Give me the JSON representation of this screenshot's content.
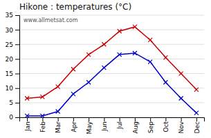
{
  "chart_data": {
    "type": "line",
    "title": "Hikone : temperatures (°C)",
    "categories": [
      "Jan",
      "Feb",
      "Mar",
      "Apr",
      "May",
      "Jun",
      "Jul",
      "Aug",
      "Sep",
      "Oct",
      "Nov",
      "Dec"
    ],
    "series": [
      {
        "color": "#cc0000",
        "marker": "x",
        "line_style": "solid",
        "values": [
          6.5,
          7.0,
          10.5,
          16.5,
          21.5,
          25.0,
          29.5,
          31.0,
          26.5,
          20.5,
          15.0,
          9.5
        ]
      },
      {
        "color": "#0000cc",
        "marker": "x",
        "line_style": "solid",
        "values": [
          0.5,
          0.5,
          2.0,
          8.0,
          12.0,
          17.0,
          21.5,
          22.0,
          19.0,
          12.0,
          6.5,
          1.5
        ]
      }
    ],
    "ylim": [
      0,
      35
    ],
    "yticks": [
      0,
      5,
      10,
      15,
      20,
      25,
      30,
      35
    ],
    "grid": true,
    "annotations": [
      "www.allmetsat.com"
    ]
  }
}
